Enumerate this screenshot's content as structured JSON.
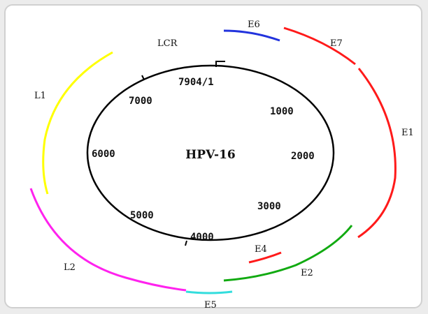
{
  "diagram": {
    "title": "HPV-16",
    "region_label": "LCR",
    "ticks": [
      {
        "label": "7904/1"
      },
      {
        "label": "1000"
      },
      {
        "label": "2000"
      },
      {
        "label": "3000"
      },
      {
        "label": "4000"
      },
      {
        "label": "5000"
      },
      {
        "label": "6000"
      },
      {
        "label": "7000"
      }
    ],
    "genes": [
      {
        "name": "E6",
        "color": "#2233dd"
      },
      {
        "name": "E7",
        "color": "#ff1a1a"
      },
      {
        "name": "E1",
        "color": "#ff1a1a"
      },
      {
        "name": "E2",
        "color": "#11aa11"
      },
      {
        "name": "E4",
        "color": "#ff1a1a"
      },
      {
        "name": "E5",
        "color": "#33dddd"
      },
      {
        "name": "L2",
        "color": "#ff22ee"
      },
      {
        "name": "L1",
        "color": "#ffff00"
      }
    ]
  }
}
